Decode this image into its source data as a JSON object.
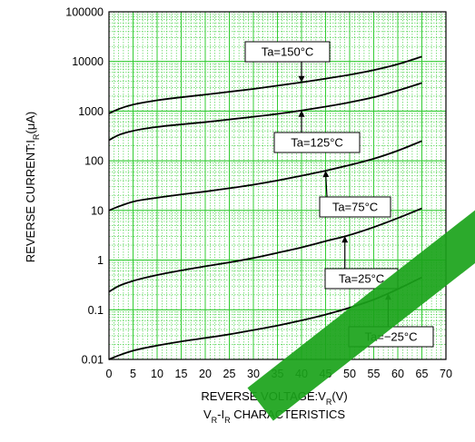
{
  "chart_data": {
    "type": "line",
    "title": "",
    "subtitle": "VR-IR CHARACTERISTICS",
    "xlabel": "REVERSE VOLTAGE:VR(V)",
    "ylabel": "REVERSE CURRENT:IR(μA)",
    "xlim": [
      0,
      70
    ],
    "ylim": [
      0.01,
      100000
    ],
    "yscale": "log",
    "xticks": [
      0,
      5,
      10,
      15,
      20,
      25,
      30,
      35,
      40,
      45,
      50,
      55,
      60,
      65,
      70
    ],
    "yticks": [
      "0.01",
      "0.1",
      "1",
      "10",
      "100",
      "1000",
      "10000",
      "100000"
    ],
    "grid": true,
    "grid_color": "#33cc33",
    "background": "#ffffff",
    "line_color": "#000000",
    "x": [
      0,
      2,
      5,
      10,
      15,
      20,
      25,
      30,
      35,
      40,
      45,
      50,
      55,
      60,
      65
    ],
    "series": [
      {
        "name": "Ta=150°C",
        "values": [
          900,
          1100,
          1350,
          1650,
          1900,
          2150,
          2450,
          2800,
          3250,
          3800,
          4500,
          5400,
          6700,
          8800,
          12500
        ]
      },
      {
        "name": "Ta=125°C",
        "values": [
          260,
          330,
          400,
          480,
          540,
          600,
          680,
          770,
          880,
          1030,
          1230,
          1500,
          1900,
          2600,
          3700
        ]
      },
      {
        "name": "Ta=75°C",
        "values": [
          10,
          12,
          15,
          18,
          21,
          24,
          28,
          33,
          40,
          50,
          63,
          82,
          110,
          160,
          250
        ]
      },
      {
        "name": "Ta=25°C",
        "values": [
          0.23,
          0.3,
          0.38,
          0.5,
          0.62,
          0.75,
          0.9,
          1.1,
          1.4,
          1.8,
          2.4,
          3.2,
          4.6,
          7.0,
          11.0
        ]
      },
      {
        "name": "Ta=−25°C",
        "values": [
          0.01,
          0.012,
          0.015,
          0.019,
          0.023,
          0.027,
          0.032,
          0.039,
          0.048,
          0.061,
          0.08,
          0.11,
          0.16,
          0.26,
          0.45
        ]
      }
    ],
    "annotations": [
      {
        "text": "Ta=150°C",
        "series": "Ta=150°C",
        "target_x": 40
      },
      {
        "text": "Ta=125°C",
        "series": "Ta=125°C",
        "target_x": 40
      },
      {
        "text": "Ta=75°C",
        "series": "Ta=75°C",
        "target_x": 45
      },
      {
        "text": "Ta=25°C",
        "series": "Ta=25°C",
        "target_x": 49
      },
      {
        "text": "Ta=−25°C",
        "series": "Ta=−25°C",
        "target_x": 58
      }
    ]
  }
}
